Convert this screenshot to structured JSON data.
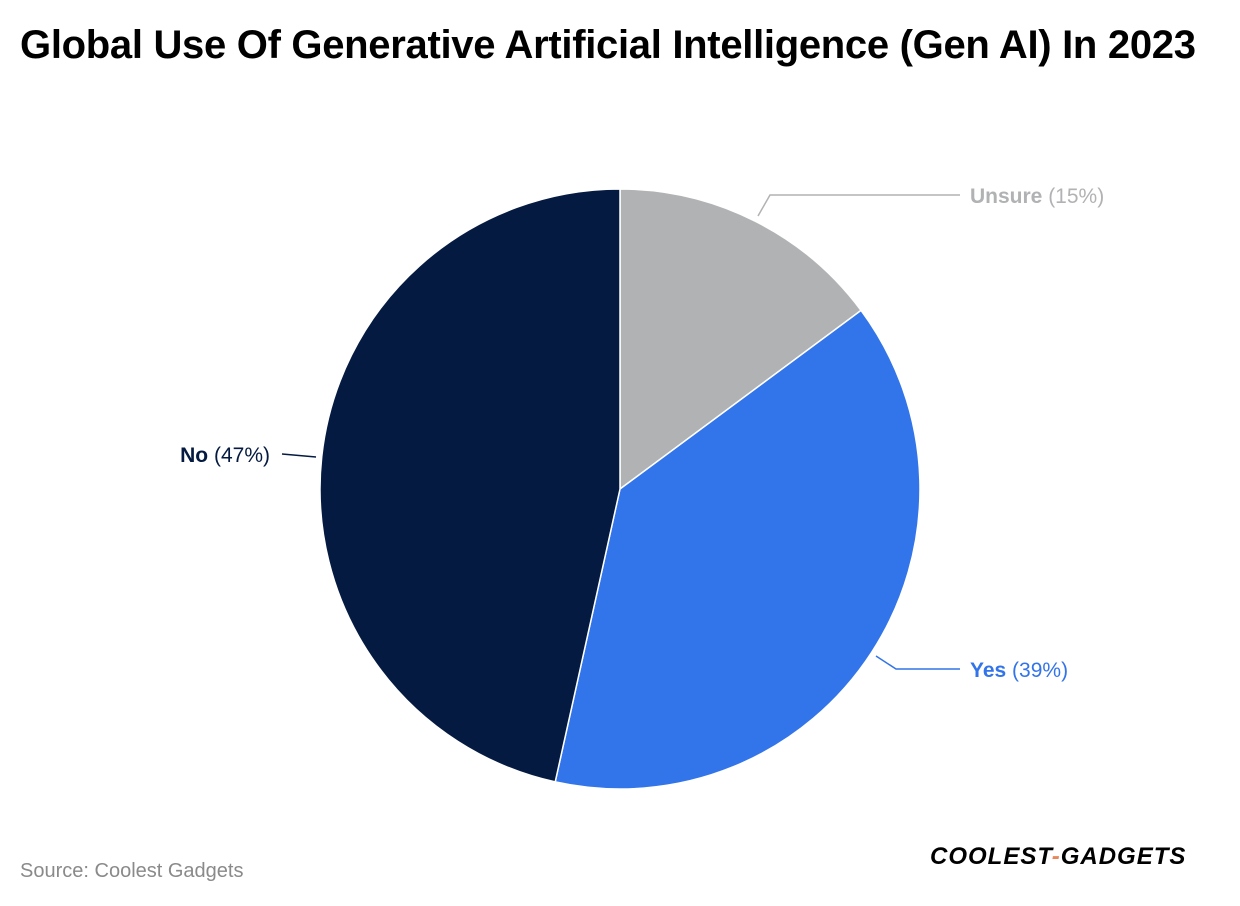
{
  "header": {
    "title": "Global Use Of Generative Artificial Intelligence (Gen AI) In 2023"
  },
  "chart_data": {
    "type": "pie",
    "title": "Global Use Of Generative Artificial Intelligence (Gen AI) In 2023",
    "start_angle_deg": 0,
    "direction": "clockwise",
    "slices": [
      {
        "label": "Unsure",
        "value": 15,
        "value_label": "(15%)",
        "color": "#b1b2b4"
      },
      {
        "label": "Yes",
        "value": 39,
        "value_label": "(39%)",
        "color": "#3274e9"
      },
      {
        "label": "No",
        "value": 47,
        "value_label": "(47%)",
        "color": "#041a40"
      }
    ]
  },
  "footer": {
    "source_label": "Source:",
    "source_value": "Coolest Gadgets",
    "logo_text": "COOLEST-GADGETS",
    "logo_color": "#000000",
    "logo_dash_color": "#e8875a"
  }
}
